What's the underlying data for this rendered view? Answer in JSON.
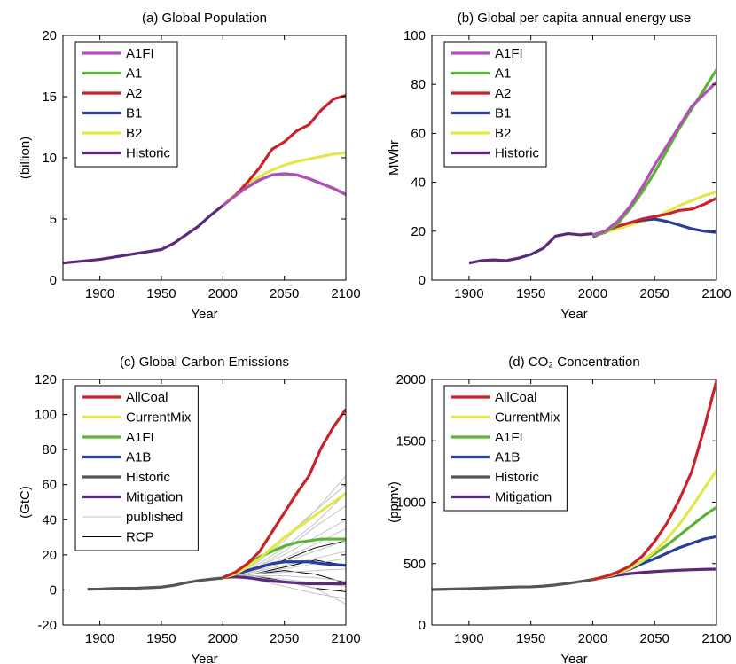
{
  "chart_data": [
    {
      "type": "line",
      "title": "(a) Global Population",
      "x_label": "Year",
      "y_label": "(billion)",
      "xlim": [
        1870,
        2100
      ],
      "xticks": [
        1900,
        1950,
        2000,
        2050,
        2100
      ],
      "ylim": [
        0,
        20
      ],
      "yticks": [
        0,
        5,
        10,
        15,
        20
      ],
      "legend": "upper left",
      "series": [
        {
          "name": "A1FI",
          "color": "#b050b8",
          "x": [
            2000,
            2010,
            2020,
            2030,
            2040,
            2050,
            2060,
            2070,
            2080,
            2090,
            2100
          ],
          "values": [
            6.1,
            6.9,
            7.6,
            8.2,
            8.6,
            8.7,
            8.6,
            8.3,
            7.9,
            7.5,
            7.0
          ]
        },
        {
          "name": "A1",
          "color": "#5db336",
          "x": [
            2000,
            2010,
            2020,
            2030,
            2040,
            2050,
            2060,
            2070,
            2080,
            2090,
            2100
          ],
          "values": [
            6.1,
            6.9,
            7.6,
            8.2,
            8.6,
            8.7,
            8.6,
            8.3,
            7.9,
            7.5,
            7.0
          ]
        },
        {
          "name": "A2",
          "color": "#c8232b",
          "x": [
            2000,
            2010,
            2020,
            2030,
            2040,
            2050,
            2060,
            2070,
            2080,
            2090,
            2100
          ],
          "values": [
            6.1,
            6.9,
            8.0,
            9.2,
            10.7,
            11.3,
            12.2,
            12.7,
            13.9,
            14.8,
            15.1
          ]
        },
        {
          "name": "B1",
          "color": "#2a3e99",
          "x": [
            2000,
            2010,
            2020,
            2030,
            2040,
            2050,
            2060,
            2070,
            2080,
            2090,
            2100
          ],
          "values": [
            6.1,
            6.9,
            7.6,
            8.2,
            8.6,
            8.7,
            8.6,
            8.3,
            7.9,
            7.5,
            7.0
          ]
        },
        {
          "name": "B2",
          "color": "#e3e84a",
          "x": [
            2000,
            2010,
            2020,
            2030,
            2040,
            2050,
            2060,
            2070,
            2080,
            2090,
            2100
          ],
          "values": [
            6.1,
            7.0,
            7.8,
            8.5,
            9.0,
            9.4,
            9.7,
            9.9,
            10.1,
            10.3,
            10.4
          ]
        },
        {
          "name": "Historic",
          "color": "#5a2a7a",
          "x": [
            1870,
            1900,
            1950,
            1960,
            1970,
            1980,
            1990,
            2000
          ],
          "values": [
            1.4,
            1.7,
            2.5,
            3.0,
            3.7,
            4.4,
            5.3,
            6.1
          ]
        }
      ]
    },
    {
      "type": "line",
      "title": "(b) Global per capita annual energy use",
      "x_label": "Year",
      "y_label": "MWhr",
      "xlim": [
        1870,
        2100
      ],
      "xticks": [
        1900,
        1950,
        2000,
        2050,
        2100
      ],
      "ylim": [
        0,
        100
      ],
      "yticks": [
        0,
        20,
        40,
        60,
        80,
        100
      ],
      "legend": "upper left",
      "series": [
        {
          "name": "A1FI",
          "color": "#b050b8",
          "x": [
            2000,
            2010,
            2020,
            2030,
            2040,
            2050,
            2060,
            2070,
            2080,
            2090,
            2100
          ],
          "values": [
            18.5,
            20,
            24,
            30,
            38,
            47,
            55,
            63,
            71,
            76,
            81
          ]
        },
        {
          "name": "A1",
          "color": "#5db336",
          "x": [
            2000,
            2010,
            2020,
            2030,
            2040,
            2050,
            2060,
            2070,
            2080,
            2090,
            2100
          ],
          "values": [
            18,
            19.5,
            23,
            29,
            36,
            44,
            53,
            62,
            70,
            78,
            86
          ]
        },
        {
          "name": "A2",
          "color": "#c8232b",
          "x": [
            2000,
            2010,
            2020,
            2030,
            2040,
            2050,
            2060,
            2070,
            2080,
            2090,
            2100
          ],
          "values": [
            18,
            20,
            22,
            23.5,
            25,
            26,
            27,
            28.5,
            29,
            31,
            33.5
          ]
        },
        {
          "name": "B1",
          "color": "#2a3e99",
          "x": [
            2000,
            2010,
            2020,
            2030,
            2040,
            2050,
            2060,
            2070,
            2080,
            2090,
            2100
          ],
          "values": [
            17.5,
            20,
            22,
            23.5,
            24.5,
            25,
            24,
            22.5,
            21,
            20,
            19.5
          ]
        },
        {
          "name": "B2",
          "color": "#e3e84a",
          "x": [
            2000,
            2010,
            2020,
            2030,
            2040,
            2050,
            2060,
            2070,
            2080,
            2090,
            2100
          ],
          "values": [
            18,
            19.5,
            21,
            22.5,
            24,
            25.5,
            28,
            30.5,
            32.5,
            34.5,
            36
          ]
        },
        {
          "name": "Historic",
          "color": "#5a2a7a",
          "x": [
            1900,
            1910,
            1920,
            1930,
            1940,
            1950,
            1960,
            1970,
            1980,
            1990,
            2000
          ],
          "values": [
            7,
            8,
            8.3,
            8,
            9,
            10.5,
            13,
            18,
            19,
            18.5,
            19
          ]
        }
      ]
    },
    {
      "type": "line",
      "title": "(c) Global Carbon Emissions",
      "x_label": "Year",
      "y_label": "(GtC)",
      "xlim": [
        1870,
        2100
      ],
      "xticks": [
        1900,
        1950,
        2000,
        2050,
        2100
      ],
      "ylim": [
        -20,
        120
      ],
      "yticks": [
        -20,
        0,
        20,
        40,
        60,
        80,
        100,
        120
      ],
      "legend": "upper left",
      "series": [
        {
          "name": "AllCoal",
          "color": "#c8232b",
          "x": [
            2000,
            2010,
            2020,
            2030,
            2040,
            2050,
            2060,
            2070,
            2080,
            2090,
            2100
          ],
          "values": [
            7,
            10,
            15,
            22,
            33,
            44,
            55,
            65,
            81,
            93,
            103
          ]
        },
        {
          "name": "CurrentMix",
          "color": "#e3e84a",
          "x": [
            2000,
            2010,
            2020,
            2030,
            2040,
            2050,
            2060,
            2070,
            2080,
            2090,
            2100
          ],
          "values": [
            7,
            9,
            13,
            18,
            24,
            30,
            35,
            40,
            45,
            50,
            55
          ]
        },
        {
          "name": "A1FI",
          "color": "#5db336",
          "x": [
            2000,
            2010,
            2020,
            2030,
            2040,
            2050,
            2060,
            2070,
            2080,
            2090,
            2100
          ],
          "values": [
            7,
            10,
            14,
            19,
            22,
            25,
            27,
            28,
            29,
            29,
            29
          ]
        },
        {
          "name": "A1B",
          "color": "#2a3e99",
          "x": [
            2000,
            2010,
            2020,
            2030,
            2040,
            2050,
            2060,
            2070,
            2080,
            2090,
            2100
          ],
          "values": [
            7,
            9,
            11,
            13,
            15,
            16,
            16,
            16,
            15,
            14.5,
            14
          ]
        },
        {
          "name": "Historic",
          "color": "#555555",
          "x": [
            1890,
            1900,
            1910,
            1920,
            1930,
            1940,
            1950,
            1960,
            1970,
            1980,
            1990,
            2000
          ],
          "values": [
            0.4,
            0.5,
            0.8,
            0.9,
            1.0,
            1.3,
            1.6,
            2.6,
            4.1,
            5.3,
            6.1,
            6.8
          ]
        },
        {
          "name": "Mitigation",
          "color": "#5a2a7a",
          "x": [
            2000,
            2010,
            2020,
            2030,
            2040,
            2050,
            2060,
            2070,
            2080,
            2090,
            2100
          ],
          "values": [
            7,
            7.5,
            7,
            6,
            5,
            4.5,
            4,
            3.5,
            3.5,
            3.5,
            3.5
          ]
        },
        {
          "name": "published",
          "color": "#c4c4c4",
          "x": [
            2000,
            2025,
            2050,
            2075,
            2100
          ],
          "lines": [
            [
              7,
              12,
              20,
              30,
              40
            ],
            [
              7,
              14,
              28,
              45,
              65
            ],
            [
              7,
              10,
              14,
              18,
              22
            ],
            [
              7,
              9,
              10,
              11,
              12
            ],
            [
              7,
              8,
              6,
              4,
              2
            ],
            [
              7,
              11,
              18,
              26,
              35
            ],
            [
              7,
              6,
              2,
              -2,
              -5
            ],
            [
              7,
              13,
              24,
              38,
              55
            ],
            [
              7,
              9,
              12,
              15,
              18
            ],
            [
              7,
              10,
              16,
              22,
              28
            ],
            [
              7,
              7,
              5,
              1,
              -8
            ],
            [
              7,
              12,
              22,
              36,
              48
            ],
            [
              7,
              8,
              8,
              7,
              5
            ],
            [
              7,
              15,
              30,
              45,
              60
            ]
          ]
        },
        {
          "name": "RCP",
          "color": "#000000",
          "x": [
            2000,
            2025,
            2050,
            2075,
            2100
          ],
          "lines": [
            [
              7,
              11,
              17,
              24,
              28
            ],
            [
              7,
              9,
              13,
              17,
              14
            ],
            [
              7,
              9,
              11,
              9,
              4
            ],
            [
              7,
              8,
              5,
              1,
              -1
            ]
          ]
        }
      ]
    },
    {
      "type": "line",
      "title": "(d) CO₂ Concentration",
      "x_label": "Year",
      "y_label": "(ppmv)",
      "xlim": [
        1870,
        2100
      ],
      "xticks": [
        1900,
        1950,
        2000,
        2050,
        2100
      ],
      "ylim": [
        0,
        2000
      ],
      "yticks": [
        0,
        500,
        1000,
        1500,
        2000
      ],
      "legend": "upper left",
      "series": [
        {
          "name": "AllCoal",
          "color": "#c8232b",
          "x": [
            2000,
            2010,
            2020,
            2030,
            2040,
            2050,
            2060,
            2070,
            2080,
            2090,
            2100
          ],
          "values": [
            370,
            395,
            430,
            480,
            560,
            680,
            830,
            1020,
            1250,
            1600,
            1990
          ]
        },
        {
          "name": "CurrentMix",
          "color": "#e3e84a",
          "x": [
            2000,
            2010,
            2020,
            2030,
            2040,
            2050,
            2060,
            2070,
            2080,
            2090,
            2100
          ],
          "values": [
            370,
            392,
            420,
            460,
            520,
            600,
            700,
            820,
            960,
            1110,
            1260
          ]
        },
        {
          "name": "A1FI",
          "color": "#5db336",
          "x": [
            2000,
            2010,
            2020,
            2030,
            2040,
            2050,
            2060,
            2070,
            2080,
            2090,
            2100
          ],
          "values": [
            370,
            393,
            425,
            465,
            520,
            580,
            650,
            730,
            810,
            890,
            960
          ]
        },
        {
          "name": "A1B",
          "color": "#2a3e99",
          "x": [
            2000,
            2010,
            2020,
            2030,
            2040,
            2050,
            2060,
            2070,
            2080,
            2090,
            2100
          ],
          "values": [
            370,
            390,
            420,
            455,
            500,
            540,
            585,
            630,
            665,
            700,
            720
          ]
        },
        {
          "name": "Historic",
          "color": "#555555",
          "x": [
            1870,
            1900,
            1920,
            1940,
            1950,
            1960,
            1970,
            1980,
            1990,
            2000
          ],
          "values": [
            289,
            296,
            303,
            310,
            311,
            317,
            326,
            339,
            354,
            370
          ]
        },
        {
          "name": "Mitigation",
          "color": "#5a2a7a",
          "x": [
            2000,
            2010,
            2020,
            2030,
            2040,
            2050,
            2060,
            2070,
            2080,
            2090,
            2100
          ],
          "values": [
            370,
            388,
            405,
            418,
            428,
            435,
            441,
            446,
            450,
            453,
            455
          ]
        }
      ]
    }
  ]
}
